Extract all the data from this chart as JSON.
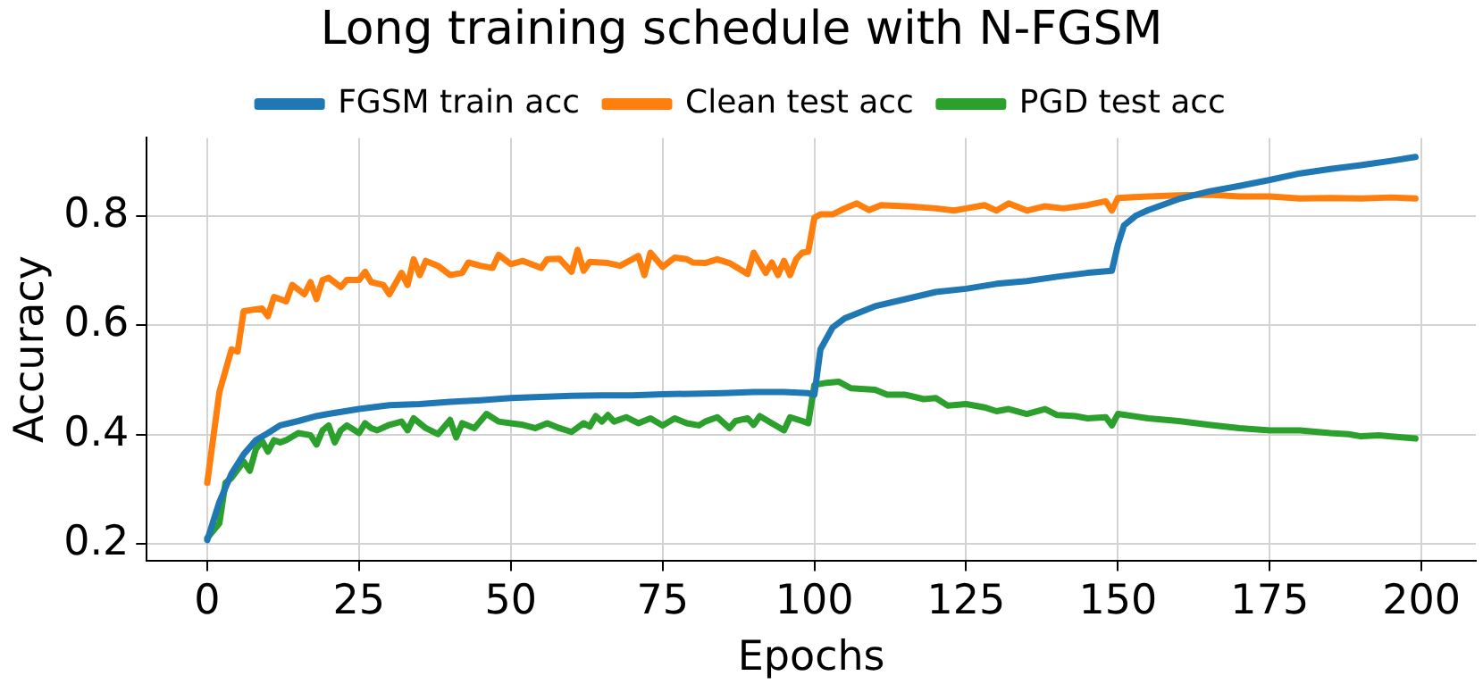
{
  "chart_data": {
    "type": "line",
    "title": "Long training schedule with N-FGSM",
    "xlabel": "Epochs",
    "ylabel": "Accuracy",
    "xlim": [
      -9.95,
      208.95
    ],
    "xticks": [
      0,
      25,
      50,
      75,
      100,
      125,
      150,
      175,
      200
    ],
    "ylim": [
      0.17,
      0.943
    ],
    "yticks": [
      0.2,
      0.4,
      0.6,
      0.8
    ],
    "grid": true,
    "legend": "top",
    "marker": "none",
    "line_style": "solid",
    "series": [
      {
        "name": "FGSM train acc",
        "color": "#1f77b4",
        "x": [
          0,
          2,
          4,
          6,
          8,
          10,
          12,
          15,
          18,
          20,
          25,
          30,
          35,
          40,
          45,
          50,
          55,
          60,
          65,
          70,
          75,
          80,
          85,
          90,
          95,
          99,
          100,
          101,
          103,
          105,
          110,
          115,
          120,
          125,
          130,
          135,
          140,
          145,
          149,
          150,
          151,
          153,
          155,
          160,
          165,
          170,
          175,
          180,
          185,
          190,
          195,
          199
        ],
        "values": [
          0.207,
          0.277,
          0.329,
          0.364,
          0.39,
          0.403,
          0.417,
          0.425,
          0.434,
          0.438,
          0.447,
          0.454,
          0.456,
          0.46,
          0.463,
          0.467,
          0.469,
          0.471,
          0.472,
          0.472,
          0.474,
          0.475,
          0.476,
          0.478,
          0.478,
          0.476,
          0.473,
          0.556,
          0.596,
          0.613,
          0.635,
          0.648,
          0.661,
          0.667,
          0.676,
          0.681,
          0.689,
          0.696,
          0.7,
          0.748,
          0.783,
          0.801,
          0.811,
          0.831,
          0.845,
          0.855,
          0.866,
          0.878,
          0.886,
          0.893,
          0.901,
          0.908
        ]
      },
      {
        "name": "Clean test acc",
        "color": "#ff7f0e",
        "x": [
          0,
          2,
          4,
          5,
          6,
          9,
          10,
          11,
          13,
          14,
          16,
          17,
          18,
          19,
          20,
          22,
          23,
          25,
          26,
          27,
          29,
          30,
          32,
          33,
          34,
          35,
          36,
          38,
          40,
          42,
          43,
          45,
          47,
          48,
          50,
          52,
          55,
          56,
          58,
          60,
          61,
          62,
          63,
          66,
          68,
          70,
          71,
          72,
          73,
          75,
          77,
          79,
          80,
          82,
          84,
          86,
          89,
          90,
          92,
          93,
          94,
          95,
          96,
          97,
          98,
          99,
          100,
          101,
          103,
          105,
          107,
          109,
          111,
          115,
          120,
          123,
          125,
          128,
          130,
          132,
          135,
          138,
          141,
          145,
          148,
          149,
          150,
          155,
          160,
          165,
          170,
          175,
          180,
          185,
          190,
          195,
          199
        ],
        "values": [
          0.312,
          0.478,
          0.556,
          0.552,
          0.626,
          0.631,
          0.617,
          0.652,
          0.644,
          0.674,
          0.657,
          0.679,
          0.648,
          0.683,
          0.687,
          0.67,
          0.683,
          0.683,
          0.698,
          0.679,
          0.674,
          0.657,
          0.696,
          0.674,
          0.721,
          0.692,
          0.718,
          0.709,
          0.692,
          0.696,
          0.715,
          0.709,
          0.705,
          0.729,
          0.712,
          0.718,
          0.705,
          0.721,
          0.722,
          0.698,
          0.738,
          0.7,
          0.716,
          0.714,
          0.709,
          0.721,
          0.727,
          0.692,
          0.733,
          0.707,
          0.724,
          0.721,
          0.715,
          0.714,
          0.721,
          0.714,
          0.694,
          0.733,
          0.696,
          0.715,
          0.692,
          0.718,
          0.692,
          0.721,
          0.733,
          0.735,
          0.797,
          0.803,
          0.803,
          0.814,
          0.823,
          0.811,
          0.82,
          0.818,
          0.814,
          0.81,
          0.814,
          0.82,
          0.81,
          0.823,
          0.81,
          0.818,
          0.814,
          0.82,
          0.827,
          0.81,
          0.833,
          0.836,
          0.838,
          0.839,
          0.836,
          0.836,
          0.832,
          0.833,
          0.832,
          0.834,
          0.832
        ]
      },
      {
        "name": "PGD test acc",
        "color": "#2ca02c",
        "x": [
          0,
          2,
          3,
          4,
          6,
          7,
          8,
          9,
          10,
          11,
          12,
          13,
          15,
          17,
          18,
          19,
          20,
          21,
          22,
          23,
          25,
          26,
          27,
          28,
          30,
          32,
          33,
          34,
          36,
          38,
          40,
          41,
          42,
          44,
          46,
          48,
          50,
          52,
          54,
          56,
          58,
          60,
          62,
          63,
          64,
          65,
          66,
          67,
          69,
          71,
          73,
          75,
          77,
          79,
          81,
          82,
          84,
          86,
          87,
          89,
          90,
          91,
          93,
          95,
          96,
          98,
          99,
          100,
          102,
          104,
          106,
          110,
          112,
          115,
          118,
          120,
          122,
          125,
          128,
          130,
          132,
          135,
          138,
          140,
          143,
          145,
          148,
          149,
          150,
          155,
          160,
          165,
          170,
          175,
          180,
          185,
          188,
          190,
          193,
          195,
          199
        ],
        "values": [
          0.211,
          0.238,
          0.312,
          0.321,
          0.351,
          0.334,
          0.373,
          0.389,
          0.369,
          0.39,
          0.386,
          0.39,
          0.403,
          0.399,
          0.382,
          0.408,
          0.417,
          0.386,
          0.408,
          0.417,
          0.403,
          0.421,
          0.412,
          0.408,
          0.418,
          0.424,
          0.408,
          0.43,
          0.412,
          0.401,
          0.427,
          0.395,
          0.421,
          0.412,
          0.438,
          0.424,
          0.421,
          0.418,
          0.412,
          0.421,
          0.412,
          0.405,
          0.421,
          0.415,
          0.434,
          0.424,
          0.436,
          0.424,
          0.432,
          0.421,
          0.43,
          0.417,
          0.43,
          0.421,
          0.417,
          0.424,
          0.432,
          0.412,
          0.425,
          0.43,
          0.418,
          0.434,
          0.421,
          0.408,
          0.432,
          0.425,
          0.421,
          0.491,
          0.495,
          0.497,
          0.485,
          0.482,
          0.473,
          0.473,
          0.465,
          0.467,
          0.453,
          0.456,
          0.45,
          0.443,
          0.447,
          0.438,
          0.447,
          0.436,
          0.434,
          0.43,
          0.432,
          0.417,
          0.438,
          0.43,
          0.425,
          0.418,
          0.412,
          0.408,
          0.408,
          0.403,
          0.401,
          0.397,
          0.399,
          0.397,
          0.393
        ]
      }
    ]
  }
}
